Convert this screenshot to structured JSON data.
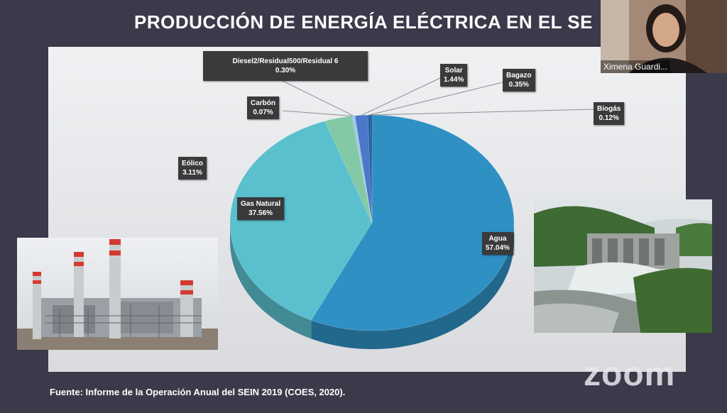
{
  "slide": {
    "title": "PRODUCCIÓN DE ENERGÍA ELÉCTRICA EN EL SE",
    "source": "Fuente: Informe de la Operación Anual del SEIN 2019 (COES, 2020)."
  },
  "chart_data": {
    "type": "pie",
    "title": "",
    "slices": [
      {
        "label": "Agua",
        "value_label": "57.04%",
        "value": 57.04,
        "color": "#2f90c3"
      },
      {
        "label": "Gas Natural",
        "value_label": "37.56%",
        "value": 37.56,
        "color": "#5bc0cd"
      },
      {
        "label": "Eólico",
        "value_label": "3.11%",
        "value": 3.11,
        "color": "#83c9a6"
      },
      {
        "label": "Carbón",
        "value_label": "0.07%",
        "value": 0.07,
        "color": "#7fb2e0"
      },
      {
        "label": "Diesel2/Residual500/Residual 6",
        "value_label": "0.30%",
        "value": 0.3,
        "color": "#9fc7e6"
      },
      {
        "label": "Solar",
        "value_label": "1.44%",
        "value": 1.44,
        "color": "#4b78c8"
      },
      {
        "label": "Bagazo",
        "value_label": "0.35%",
        "value": 0.35,
        "color": "#1b5fa5"
      },
      {
        "label": "Biogás",
        "value_label": "0.12%",
        "value": 0.12,
        "color": "#1c3f74"
      }
    ]
  },
  "zoom": {
    "logo": "zoom"
  },
  "participant": {
    "name": "Ximena Guardi..."
  }
}
